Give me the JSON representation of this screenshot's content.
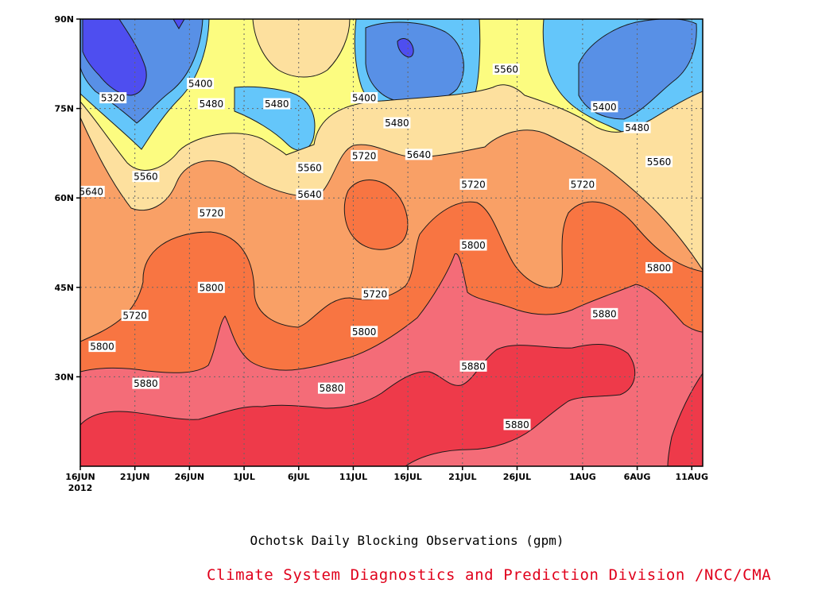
{
  "chart_data": {
    "type": "contour",
    "title": "",
    "subtitle": "Ochotsk Daily Blocking Observations (gpm)",
    "credit": "Climate System Diagnostics and Prediction Division /NCC/CMA",
    "x_ticks": [
      "16JUN",
      "21JUN",
      "26JUN",
      "1JUL",
      "6JUL",
      "11JUL",
      "16JUL",
      "21JUL",
      "26JUL",
      "1AUG",
      "6AUG",
      "11AUG"
    ],
    "x_year_label": "2012",
    "y_ticks": [
      "30N",
      "45N",
      "60N",
      "75N",
      "90N"
    ],
    "grid": true,
    "contour_levels": [
      5320,
      5400,
      5480,
      5560,
      5640,
      5720,
      5800,
      5880
    ],
    "band_colors": [
      "#4e4ef0",
      "#5890e6",
      "#64c6fa",
      "#fcfc80",
      "#fde09e",
      "#f9a066",
      "#f87542",
      "#f46c78",
      "#ee3a4a"
    ],
    "contour_labels": [
      {
        "value": 5320,
        "lat": 76.8,
        "date": "2012-06-19"
      },
      {
        "value": 5400,
        "lat": 79.2,
        "date": "2012-06-27"
      },
      {
        "value": 5400,
        "lat": 76.8,
        "date": "2012-07-12"
      },
      {
        "value": 5400,
        "lat": 75.3,
        "date": "2012-08-03"
      },
      {
        "value": 5480,
        "lat": 75.8,
        "date": "2012-06-28"
      },
      {
        "value": 5480,
        "lat": 75.8,
        "date": "2012-07-04"
      },
      {
        "value": 5480,
        "lat": 72.6,
        "date": "2012-07-15"
      },
      {
        "value": 5480,
        "lat": 71.8,
        "date": "2012-08-06"
      },
      {
        "value": 5560,
        "lat": 81.6,
        "date": "2012-07-25"
      },
      {
        "value": 5560,
        "lat": 63.6,
        "date": "2012-06-22"
      },
      {
        "value": 5560,
        "lat": 65.1,
        "date": "2012-07-07"
      },
      {
        "value": 5560,
        "lat": 66.1,
        "date": "2012-08-08"
      },
      {
        "value": 5640,
        "lat": 61.1,
        "date": "2012-06-17"
      },
      {
        "value": 5640,
        "lat": 60.6,
        "date": "2012-07-07"
      },
      {
        "value": 5640,
        "lat": 67.3,
        "date": "2012-07-17"
      },
      {
        "value": 5720,
        "lat": 67.1,
        "date": "2012-07-12"
      },
      {
        "value": 5720,
        "lat": 62.3,
        "date": "2012-07-22"
      },
      {
        "value": 5720,
        "lat": 62.3,
        "date": "2012-08-01"
      },
      {
        "value": 5720,
        "lat": 57.5,
        "date": "2012-06-28"
      },
      {
        "value": 5720,
        "lat": 40.3,
        "date": "2012-06-21"
      },
      {
        "value": 5720,
        "lat": 43.9,
        "date": "2012-07-13"
      },
      {
        "value": 5800,
        "lat": 52.1,
        "date": "2012-07-22"
      },
      {
        "value": 5800,
        "lat": 48.3,
        "date": "2012-08-08"
      },
      {
        "value": 5800,
        "lat": 45.0,
        "date": "2012-06-28"
      },
      {
        "value": 5800,
        "lat": 35.1,
        "date": "2012-06-18"
      },
      {
        "value": 5800,
        "lat": 37.6,
        "date": "2012-07-12"
      },
      {
        "value": 5880,
        "lat": 40.6,
        "date": "2012-08-03"
      },
      {
        "value": 5880,
        "lat": 31.8,
        "date": "2012-07-22"
      },
      {
        "value": 5880,
        "lat": 28.9,
        "date": "2012-06-22"
      },
      {
        "value": 5880,
        "lat": 28.1,
        "date": "2012-07-09"
      },
      {
        "value": 5880,
        "lat": 22.0,
        "date": "2012-07-26"
      }
    ]
  }
}
